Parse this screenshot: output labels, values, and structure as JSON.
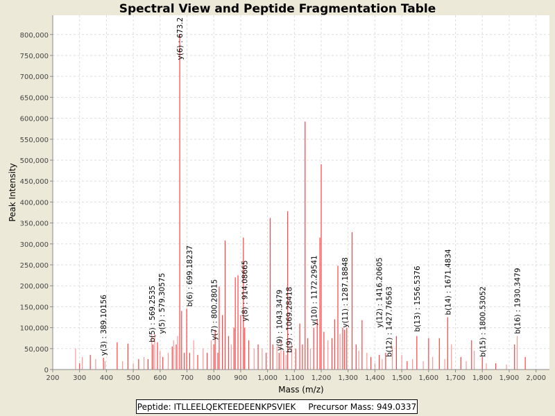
{
  "chart_data": {
    "type": "bar",
    "title": "Spectral View and Peptide Fragmentation Table",
    "xlabel": "Mass (m/z)",
    "ylabel": "Peak Intensity",
    "xlim": [
      200,
      2050
    ],
    "ylim": [
      0,
      846000
    ],
    "xticks": [
      200,
      300,
      400,
      500,
      600,
      700,
      800,
      900,
      1000,
      1100,
      1200,
      1300,
      1400,
      1500,
      1600,
      1700,
      1800,
      1900,
      2000
    ],
    "xtick_labels": [
      "200",
      "300",
      "400",
      "500",
      "600",
      "700",
      "800",
      "900",
      "1,000",
      "1,100",
      "1,200",
      "1,300",
      "1,400",
      "1,500",
      "1,600",
      "1,700",
      "1,800",
      "1,900",
      "2,000"
    ],
    "yticks": [
      0,
      50000,
      100000,
      150000,
      200000,
      250000,
      300000,
      350000,
      400000,
      450000,
      500000,
      550000,
      600000,
      650000,
      700000,
      750000,
      800000
    ],
    "ytick_labels": [
      "0",
      "50,000",
      "100,000",
      "150,000",
      "200,000",
      "250,000",
      "300,000",
      "350,000",
      "400,000",
      "450,000",
      "500,000",
      "550,000",
      "600,000",
      "650,000",
      "700,000",
      "750,000",
      "800,000"
    ],
    "grid": true,
    "series_color": "#ff4040",
    "peaks": [
      [
        285,
        50000
      ],
      [
        300,
        15000
      ],
      [
        310,
        30000
      ],
      [
        340,
        35000
      ],
      [
        360,
        25000
      ],
      [
        389,
        28000
      ],
      [
        395,
        20000
      ],
      [
        440,
        65000
      ],
      [
        460,
        20000
      ],
      [
        480,
        62000
      ],
      [
        500,
        15000
      ],
      [
        520,
        25000
      ],
      [
        540,
        30000
      ],
      [
        555,
        25000
      ],
      [
        569,
        85000
      ],
      [
        573,
        60000
      ],
      [
        580,
        85000
      ],
      [
        590,
        65000
      ],
      [
        600,
        45000
      ],
      [
        610,
        30000
      ],
      [
        630,
        40000
      ],
      [
        645,
        55000
      ],
      [
        650,
        70000
      ],
      [
        660,
        60000
      ],
      [
        665,
        80000
      ],
      [
        673,
        800000
      ],
      [
        680,
        140000
      ],
      [
        690,
        40000
      ],
      [
        699,
        145000
      ],
      [
        710,
        40000
      ],
      [
        725,
        70000
      ],
      [
        740,
        35000
      ],
      [
        760,
        50000
      ],
      [
        775,
        40000
      ],
      [
        790,
        70000
      ],
      [
        800,
        60000
      ],
      [
        805,
        95000
      ],
      [
        815,
        40000
      ],
      [
        820,
        198000
      ],
      [
        832,
        130000
      ],
      [
        842,
        308000
      ],
      [
        855,
        80000
      ],
      [
        865,
        60000
      ],
      [
        875,
        100000
      ],
      [
        880,
        220000
      ],
      [
        890,
        225000
      ],
      [
        900,
        130000
      ],
      [
        910,
        315000
      ],
      [
        915,
        100000
      ],
      [
        930,
        70000
      ],
      [
        950,
        50000
      ],
      [
        965,
        60000
      ],
      [
        980,
        50000
      ],
      [
        995,
        40000
      ],
      [
        1010,
        362000
      ],
      [
        1020,
        60000
      ],
      [
        1035,
        55000
      ],
      [
        1043,
        40000
      ],
      [
        1050,
        70000
      ],
      [
        1060,
        45000
      ],
      [
        1069,
        35000
      ],
      [
        1075,
        378000
      ],
      [
        1090,
        60000
      ],
      [
        1105,
        50000
      ],
      [
        1120,
        110000
      ],
      [
        1130,
        60000
      ],
      [
        1140,
        592000
      ],
      [
        1150,
        75000
      ],
      [
        1160,
        50000
      ],
      [
        1172,
        100000
      ],
      [
        1185,
        120000
      ],
      [
        1195,
        315000
      ],
      [
        1200,
        490000
      ],
      [
        1210,
        90000
      ],
      [
        1225,
        70000
      ],
      [
        1240,
        75000
      ],
      [
        1250,
        120000
      ],
      [
        1262,
        248000
      ],
      [
        1270,
        85000
      ],
      [
        1280,
        100000
      ],
      [
        1287,
        95000
      ],
      [
        1295,
        100000
      ],
      [
        1315,
        328000
      ],
      [
        1330,
        60000
      ],
      [
        1340,
        45000
      ],
      [
        1352,
        118000
      ],
      [
        1370,
        40000
      ],
      [
        1385,
        30000
      ],
      [
        1400,
        15000
      ],
      [
        1416,
        35000
      ],
      [
        1427,
        25000
      ],
      [
        1440,
        40000
      ],
      [
        1465,
        55000
      ],
      [
        1480,
        80000
      ],
      [
        1500,
        35000
      ],
      [
        1520,
        20000
      ],
      [
        1540,
        25000
      ],
      [
        1556,
        80000
      ],
      [
        1580,
        20000
      ],
      [
        1600,
        75000
      ],
      [
        1615,
        30000
      ],
      [
        1640,
        75000
      ],
      [
        1660,
        25000
      ],
      [
        1671,
        125000
      ],
      [
        1685,
        60000
      ],
      [
        1720,
        30000
      ],
      [
        1740,
        20000
      ],
      [
        1760,
        70000
      ],
      [
        1770,
        45000
      ],
      [
        1800,
        30000
      ],
      [
        1815,
        15000
      ],
      [
        1850,
        15000
      ],
      [
        1890,
        12000
      ],
      [
        1920,
        60000
      ],
      [
        1930,
        80000
      ],
      [
        1960,
        30000
      ]
    ],
    "annotations": [
      {
        "mass": 389.10156,
        "intensity": 28000,
        "text": "y(3) : 389.10156"
      },
      {
        "mass": 569.2535,
        "intensity": 60000,
        "text": "b(5) : 569.2535"
      },
      {
        "mass": 579.30575,
        "intensity": 80000,
        "text": "y(5) : 579.30575"
      },
      {
        "mass": 673.2,
        "intensity": 800000,
        "text": "y(6) : 673.2"
      },
      {
        "mass": 699.18237,
        "intensity": 145000,
        "text": "b(6) : 699.18237"
      },
      {
        "mass": 800.28015,
        "intensity": 65000,
        "text": "y(7) : 800.28015"
      },
      {
        "mass": 914.08665,
        "intensity": 110000,
        "text": "y(8) : 914.08665"
      },
      {
        "mass": 1043.3479,
        "intensity": 40000,
        "text": "y(9) : 1043.3479"
      },
      {
        "mass": 1069.28418,
        "intensity": 35000,
        "text": "b(9) : 1069.28418"
      },
      {
        "mass": 1172.29541,
        "intensity": 100000,
        "text": "y(10) : 1172.29541"
      },
      {
        "mass": 1287.18848,
        "intensity": 95000,
        "text": "y(11) : 1287.18848"
      },
      {
        "mass": 1416.20605,
        "intensity": 95000,
        "text": "y(12) : 1416.20605"
      },
      {
        "mass": 1427.76563,
        "intensity": 25000,
        "text": "b(12) : 1427.76563"
      },
      {
        "mass": 1556.5376,
        "intensity": 85000,
        "text": "b(13) : 1556.5376"
      },
      {
        "mass": 1671.4834,
        "intensity": 125000,
        "text": "b(14) : 1671.4834"
      },
      {
        "mass": 1800.53052,
        "intensity": 25000,
        "text": "b(15) : 1800.53052"
      },
      {
        "mass": 1930.3479,
        "intensity": 80000,
        "text": "b(16) : 1930.3479"
      }
    ]
  },
  "legend": {
    "peptide": "Peptide: ITLLEELQEKTEEDEENKPSVIEK",
    "precursor": "Precursor Mass: 949.0337"
  }
}
